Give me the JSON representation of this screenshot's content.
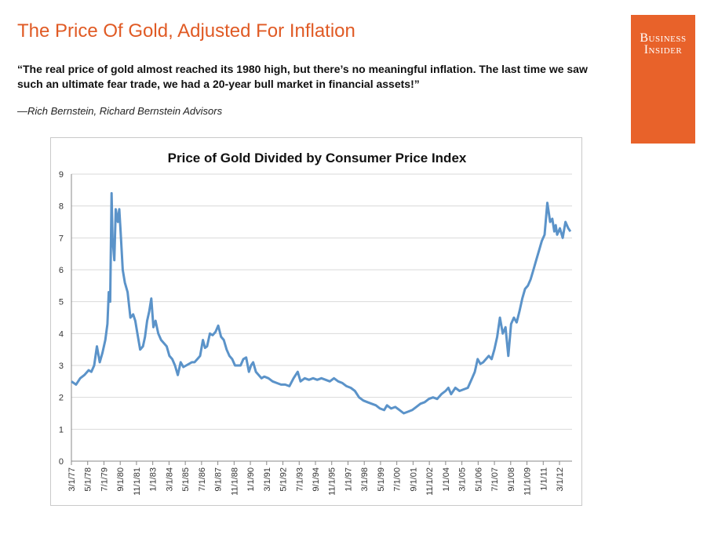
{
  "header": {
    "title": "The Price Of Gold, Adjusted For Inflation",
    "quote": "“The real price of gold almost reached its 1980 high, but there’s no meaningful inflation. The last time we saw such an ultimate fear trade, we had a 20-year bull market in financial assets!”",
    "attribution": "—Rich Bernstein, Richard Bernstein Advisors"
  },
  "logo": {
    "line1": "Business",
    "line2": "Insider",
    "bg_color": "#e8622a"
  },
  "colors": {
    "title": "#e05a24",
    "line": "#5b93c9",
    "grid": "#d9d9d9"
  },
  "chart_data": {
    "type": "line",
    "title": "Price of Gold Divided by Consumer Price Index",
    "xlabel": "",
    "ylabel": "",
    "ylim": [
      0,
      9
    ],
    "yticks": [
      0,
      1,
      2,
      3,
      4,
      5,
      6,
      7,
      8,
      9
    ],
    "grid": true,
    "legend": "none",
    "xticks": [
      "3/1/77",
      "5/1/78",
      "7/1/79",
      "9/1/80",
      "11/1/81",
      "1/1/83",
      "3/1/84",
      "5/1/85",
      "7/1/86",
      "9/1/87",
      "11/1/88",
      "1/1/90",
      "3/1/91",
      "5/1/92",
      "7/1/93",
      "9/1/94",
      "11/1/95",
      "1/1/97",
      "3/1/98",
      "5/1/99",
      "7/1/00",
      "9/1/01",
      "11/1/02",
      "1/1/04",
      "3/1/05",
      "5/1/06",
      "7/1/07",
      "9/1/08",
      "11/1/09",
      "1/1/11",
      "3/1/12"
    ],
    "series": [
      {
        "x": [
          1977.17,
          1977.5,
          1977.8,
          1978.1,
          1978.4,
          1978.6,
          1978.8,
          1979.0,
          1979.2,
          1979.4,
          1979.6,
          1979.75,
          1979.85,
          1979.95,
          1980.05,
          1980.12,
          1980.25,
          1980.35,
          1980.5,
          1980.6,
          1980.7,
          1980.85,
          1981.0,
          1981.2,
          1981.4,
          1981.6,
          1981.75,
          1981.9,
          1982.1,
          1982.3,
          1982.45,
          1982.6,
          1982.75,
          1982.9,
          1983.05,
          1983.2,
          1983.4,
          1983.6,
          1983.8,
          1984.0,
          1984.2,
          1984.4,
          1984.6,
          1984.8,
          1985.0,
          1985.2,
          1985.4,
          1985.6,
          1985.8,
          1986.0,
          1986.2,
          1986.4,
          1986.6,
          1986.75,
          1986.9,
          1987.1,
          1987.3,
          1987.5,
          1987.7,
          1987.9,
          1988.1,
          1988.3,
          1988.5,
          1988.7,
          1988.9,
          1989.1,
          1989.3,
          1989.5,
          1989.7,
          1989.9,
          1990.05,
          1990.2,
          1990.4,
          1990.6,
          1990.8,
          1991.0,
          1991.3,
          1991.6,
          1991.9,
          1992.2,
          1992.5,
          1992.8,
          1993.1,
          1993.4,
          1993.6,
          1993.9,
          1994.2,
          1994.5,
          1994.8,
          1995.1,
          1995.4,
          1995.7,
          1996.0,
          1996.3,
          1996.6,
          1996.9,
          1997.2,
          1997.5,
          1997.8,
          1998.1,
          1998.4,
          1998.7,
          1999.0,
          1999.3,
          1999.6,
          1999.8,
          2000.1,
          2000.4,
          2000.7,
          2001.0,
          2001.3,
          2001.6,
          2001.9,
          2002.2,
          2002.5,
          2002.8,
          2003.1,
          2003.4,
          2003.7,
          2004.0,
          2004.2,
          2004.4,
          2004.7,
          2005.0,
          2005.3,
          2005.6,
          2005.9,
          2006.1,
          2006.3,
          2006.5,
          2006.7,
          2006.9,
          2007.1,
          2007.3,
          2007.5,
          2007.7,
          2007.9,
          2008.1,
          2008.3,
          2008.5,
          2008.7,
          2008.9,
          2009.1,
          2009.3,
          2009.5,
          2009.7,
          2009.9,
          2010.1,
          2010.3,
          2010.5,
          2010.7,
          2010.9,
          2011.1,
          2011.3,
          2011.5,
          2011.65,
          2011.8,
          2011.9,
          2012.0,
          2012.2,
          2012.4,
          2012.6,
          2012.8,
          2012.95
        ],
        "values": [
          2.5,
          2.4,
          2.6,
          2.7,
          2.85,
          2.8,
          3.0,
          3.6,
          3.1,
          3.4,
          3.8,
          4.3,
          5.3,
          5.0,
          8.4,
          7.0,
          6.3,
          7.9,
          7.5,
          7.9,
          7.2,
          6.0,
          5.6,
          5.3,
          4.5,
          4.6,
          4.4,
          4.0,
          3.5,
          3.6,
          3.9,
          4.4,
          4.7,
          5.1,
          4.2,
          4.4,
          4.0,
          3.8,
          3.7,
          3.6,
          3.3,
          3.2,
          3.0,
          2.7,
          3.1,
          2.95,
          3.0,
          3.05,
          3.1,
          3.1,
          3.2,
          3.3,
          3.8,
          3.55,
          3.6,
          4.0,
          3.95,
          4.05,
          4.25,
          3.9,
          3.8,
          3.5,
          3.3,
          3.2,
          3.0,
          3.0,
          3.0,
          3.2,
          3.25,
          2.8,
          3.0,
          3.1,
          2.8,
          2.7,
          2.6,
          2.65,
          2.6,
          2.5,
          2.45,
          2.4,
          2.4,
          2.35,
          2.6,
          2.8,
          2.5,
          2.6,
          2.55,
          2.6,
          2.55,
          2.6,
          2.55,
          2.5,
          2.6,
          2.5,
          2.45,
          2.35,
          2.3,
          2.2,
          2.0,
          1.9,
          1.85,
          1.8,
          1.75,
          1.65,
          1.6,
          1.75,
          1.65,
          1.7,
          1.6,
          1.5,
          1.55,
          1.6,
          1.7,
          1.8,
          1.85,
          1.95,
          2.0,
          1.95,
          2.1,
          2.2,
          2.3,
          2.1,
          2.3,
          2.2,
          2.25,
          2.3,
          2.6,
          2.8,
          3.2,
          3.05,
          3.1,
          3.2,
          3.3,
          3.2,
          3.5,
          3.9,
          4.5,
          4.0,
          4.2,
          3.3,
          4.3,
          4.5,
          4.35,
          4.7,
          5.1,
          5.4,
          5.5,
          5.7,
          6.0,
          6.3,
          6.6,
          6.9,
          7.1,
          8.1,
          7.5,
          7.6,
          7.2,
          7.4,
          7.1,
          7.3,
          7.0,
          7.5,
          7.3,
          7.2
        ]
      }
    ]
  }
}
